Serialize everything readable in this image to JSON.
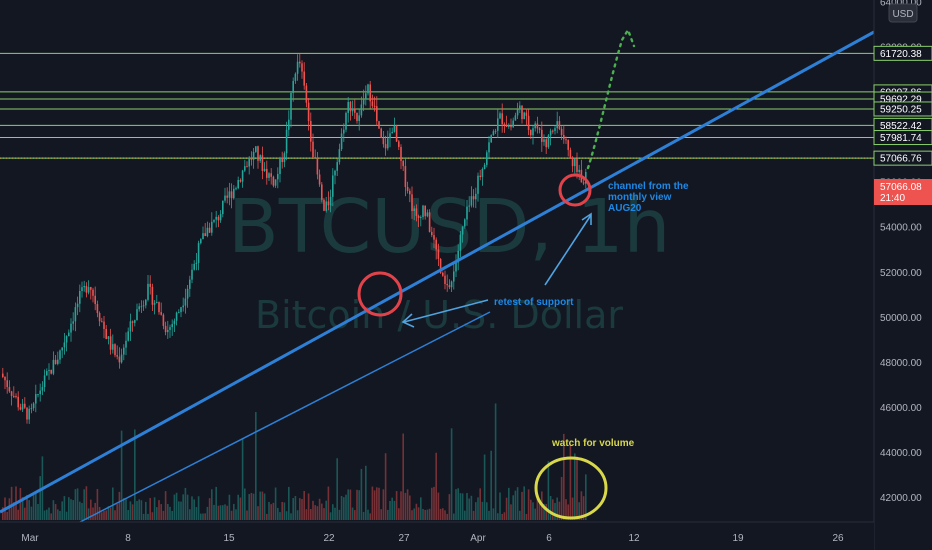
{
  "chart_data": {
    "type": "candlestick",
    "symbol_watermark": "BTCUSD, 1h",
    "name_watermark": "Bitcoin / U.S. Dollar",
    "currency": "USD",
    "colors": {
      "up": "#26a69a",
      "down": "#ef5350",
      "level": "#8bcf6a",
      "trend": "#2e7fd6",
      "annotation": "#1e88e5",
      "volume_note": "#d8d84a",
      "circle": "#e2434b"
    },
    "ylim": [
      41000,
      64000
    ],
    "y_ticks": [
      "64000.00",
      "62000.00",
      "60000.00",
      "58000.00",
      "56000.00",
      "54000.00",
      "52000.00",
      "50000.00",
      "48000.00",
      "46000.00",
      "44000.00",
      "42000.00"
    ],
    "x_ticks": [
      "Mar",
      "8",
      "15",
      "22",
      "27",
      "Apr",
      "6",
      "12",
      "19",
      "26"
    ],
    "levels": [
      "61720.38",
      "60007.86",
      "59692.29",
      "59250.25",
      "58522.42",
      "57981.74",
      "57066.76"
    ],
    "last_price": "57066.08",
    "countdown": "21:40",
    "annotations": {
      "retest": "retest of support",
      "channel_line1": "channel from the",
      "channel_line2": "monthly view",
      "channel_line3": "AUG20",
      "volume": "watch for volume"
    },
    "price_path": [
      [
        0,
        47500
      ],
      [
        2,
        46800
      ],
      [
        4,
        46000
      ],
      [
        6,
        45600
      ],
      [
        8,
        46800
      ],
      [
        10,
        47600
      ],
      [
        12,
        48400
      ],
      [
        14,
        49600
      ],
      [
        16,
        50800
      ],
      [
        18,
        51600
      ],
      [
        20,
        50200
      ],
      [
        22,
        48900
      ],
      [
        24,
        48100
      ],
      [
        26,
        49300
      ],
      [
        28,
        50400
      ],
      [
        30,
        51200
      ],
      [
        32,
        50500
      ],
      [
        34,
        49400
      ],
      [
        36,
        50100
      ],
      [
        38,
        51300
      ],
      [
        40,
        52800
      ],
      [
        42,
        53900
      ],
      [
        44,
        54300
      ],
      [
        46,
        55200
      ],
      [
        48,
        55900
      ],
      [
        50,
        56800
      ],
      [
        52,
        57300
      ],
      [
        54,
        56500
      ],
      [
        56,
        56000
      ],
      [
        58,
        57600
      ],
      [
        60,
        61000
      ],
      [
        61,
        61300
      ],
      [
        62,
        60000
      ],
      [
        63,
        58500
      ],
      [
        64,
        57000
      ],
      [
        65,
        55800
      ],
      [
        66,
        54600
      ],
      [
        67,
        55200
      ],
      [
        68,
        56500
      ],
      [
        69,
        57400
      ],
      [
        70,
        58600
      ],
      [
        71,
        59500
      ],
      [
        72,
        59300
      ],
      [
        73,
        58600
      ],
      [
        74,
        59700
      ],
      [
        75,
        60100
      ],
      [
        76,
        59600
      ],
      [
        77,
        58300
      ],
      [
        78,
        57500
      ],
      [
        79,
        57800
      ],
      [
        80,
        58600
      ],
      [
        81,
        57500
      ],
      [
        82,
        56500
      ],
      [
        83,
        55800
      ],
      [
        84,
        54900
      ],
      [
        85,
        54200
      ],
      [
        86,
        55000
      ],
      [
        87,
        54400
      ],
      [
        88,
        53600
      ],
      [
        89,
        52800
      ],
      [
        90,
        51700
      ],
      [
        91,
        51200
      ],
      [
        92,
        51600
      ],
      [
        93,
        52600
      ],
      [
        94,
        53700
      ],
      [
        95,
        54500
      ],
      [
        96,
        55200
      ],
      [
        97,
        55800
      ],
      [
        98,
        56500
      ],
      [
        99,
        57300
      ],
      [
        100,
        57900
      ],
      [
        101,
        58500
      ],
      [
        102,
        58900
      ],
      [
        103,
        58700
      ],
      [
        104,
        58400
      ],
      [
        105,
        59000
      ],
      [
        106,
        59300
      ],
      [
        107,
        58800
      ],
      [
        108,
        58300
      ],
      [
        109,
        58700
      ],
      [
        110,
        58100
      ],
      [
        111,
        57500
      ],
      [
        112,
        58000
      ],
      [
        113,
        58500
      ],
      [
        114,
        58300
      ],
      [
        115,
        57800
      ],
      [
        116,
        57300
      ],
      [
        117,
        56900
      ],
      [
        118,
        56500
      ],
      [
        119,
        56100
      ],
      [
        120,
        57000
      ]
    ]
  }
}
